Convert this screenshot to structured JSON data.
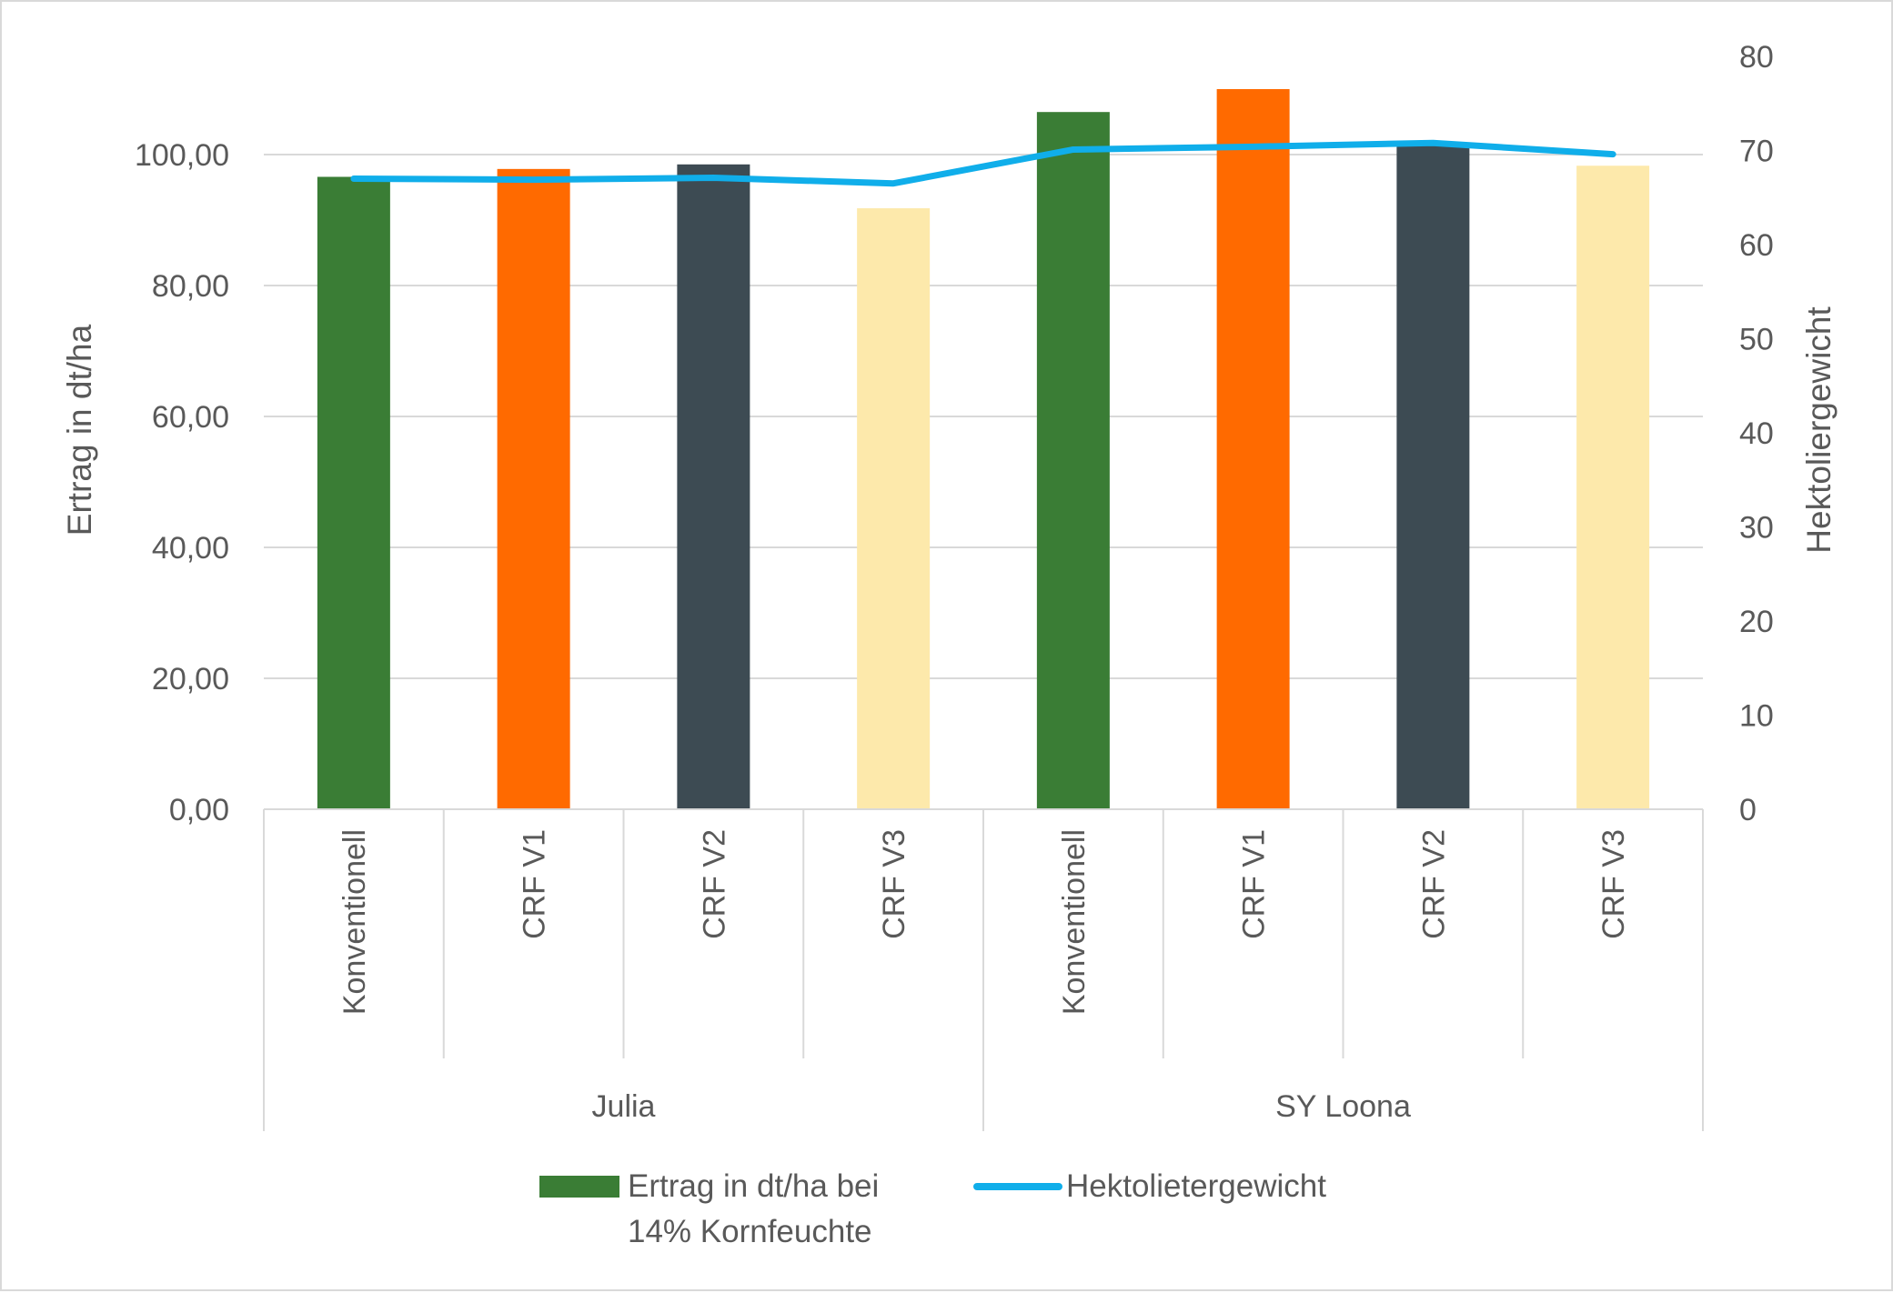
{
  "chart_data": {
    "type": "bar",
    "groups": [
      {
        "name": "Julia",
        "categories": [
          "Konventionell",
          "CRF V1",
          "CRF V2",
          "CRF V3"
        ]
      },
      {
        "name": "SY Loona",
        "categories": [
          "Konventionell",
          "CRF V1",
          "CRF V2",
          "CRF V3"
        ]
      }
    ],
    "series": [
      {
        "name_line1": "Ertrag in dt/ha bei",
        "name_line2": "14% Kornfeuchte",
        "type": "bar",
        "axis": "left",
        "values": [
          96.6,
          97.8,
          98.5,
          91.8,
          106.5,
          110.0,
          101.5,
          98.3
        ],
        "colors": [
          "#3a7d35",
          "#ff6a00",
          "#3d4b53",
          "#fde9ab",
          "#3a7d35",
          "#ff6a00",
          "#3d4b53",
          "#fde9ab"
        ]
      },
      {
        "name": "Hektolietergewicht",
        "type": "line",
        "axis": "right",
        "values": [
          67.0,
          66.9,
          67.1,
          66.5,
          70.1,
          70.4,
          70.8,
          69.6
        ],
        "color": "#10aeea"
      }
    ],
    "left_axis": {
      "label": "Ertrag in dt/ha",
      "ylim": [
        0,
        115
      ],
      "ticks": [
        0,
        20,
        40,
        60,
        80,
        100
      ],
      "tick_labels": [
        "0,00",
        "20,00",
        "40,00",
        "60,00",
        "80,00",
        "100,00"
      ]
    },
    "right_axis": {
      "label": "Hektoliergewicht",
      "ylim": [
        0,
        80
      ],
      "ticks": [
        0,
        10,
        20,
        30,
        40,
        50,
        60,
        70,
        80
      ],
      "tick_labels": [
        "0",
        "10",
        "20",
        "30",
        "40",
        "50",
        "60",
        "70",
        "80"
      ]
    },
    "grid": true,
    "legend_position": "bottom"
  }
}
